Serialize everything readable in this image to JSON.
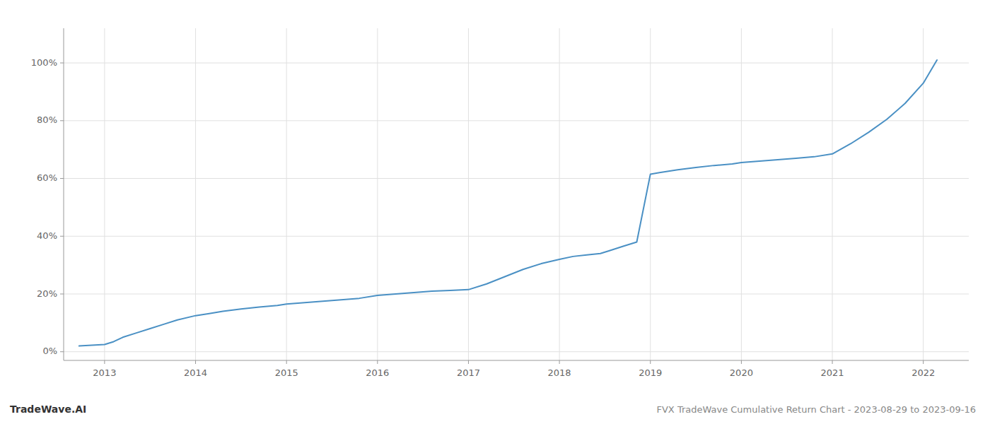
{
  "chart_data": {
    "type": "line",
    "title": "FVX TradeWave Cumulative Return Chart - 2023-08-29 to 2023-09-16",
    "annotations": [
      "TradeWave.AI"
    ],
    "color": "#4a90c4",
    "grid": true,
    "x": [
      2012.72,
      2013.0,
      2013.1,
      2013.2,
      2013.35,
      2013.5,
      2013.65,
      2013.8,
      2014.0,
      2014.15,
      2014.3,
      2014.5,
      2014.7,
      2014.9,
      2015.0,
      2015.2,
      2015.4,
      2015.6,
      2015.8,
      2016.0,
      2016.2,
      2016.4,
      2016.6,
      2016.8,
      2017.0,
      2017.2,
      2017.4,
      2017.6,
      2017.8,
      2018.0,
      2018.15,
      2018.3,
      2018.45,
      2018.55,
      2018.7,
      2018.85,
      2019.0,
      2019.1,
      2019.3,
      2019.5,
      2019.7,
      2019.9,
      2020.0,
      2020.2,
      2020.4,
      2020.6,
      2020.8,
      2021.0,
      2021.2,
      2021.4,
      2021.6,
      2021.8,
      2022.0,
      2022.15
    ],
    "values": [
      2.0,
      2.5,
      3.5,
      5.0,
      6.5,
      8.0,
      9.5,
      11.0,
      12.5,
      13.2,
      14.0,
      14.8,
      15.5,
      16.0,
      16.5,
      17.0,
      17.5,
      18.0,
      18.5,
      19.5,
      20.0,
      20.5,
      21.0,
      21.2,
      21.5,
      23.5,
      26.0,
      28.5,
      30.5,
      32.0,
      33.0,
      33.5,
      34.0,
      35.0,
      36.5,
      38.0,
      61.5,
      62.0,
      63.0,
      63.8,
      64.5,
      65.0,
      65.5,
      66.0,
      66.5,
      67.0,
      67.5,
      68.5,
      72.0,
      76.0,
      80.5,
      86.0,
      93.0,
      101.0
    ],
    "xlim": [
      2012.55,
      2022.5
    ],
    "xticks": [
      2013,
      2014,
      2015,
      2016,
      2017,
      2018,
      2019,
      2020,
      2021,
      2022
    ],
    "ylim": [
      -3,
      112
    ],
    "yticks": [
      {
        "value": 0,
        "label": "0%"
      },
      {
        "value": 20,
        "label": "20%"
      },
      {
        "value": 40,
        "label": "40%"
      },
      {
        "value": 60,
        "label": "60%"
      },
      {
        "value": 80,
        "label": "80%"
      },
      {
        "value": 100,
        "label": "100%"
      }
    ]
  }
}
